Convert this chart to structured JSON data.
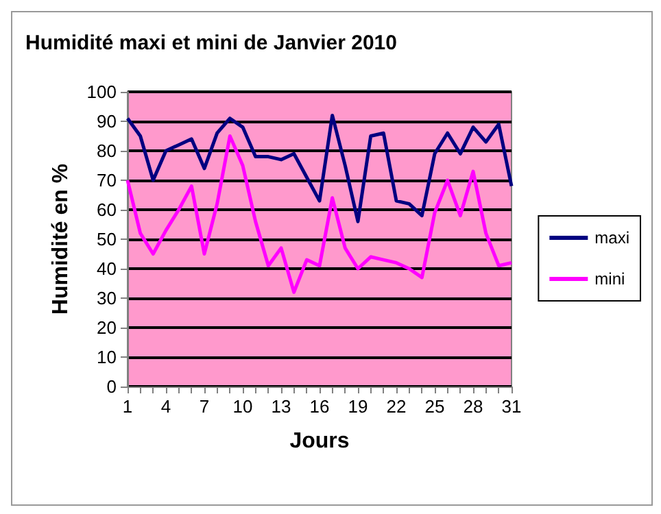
{
  "chart_data": {
    "type": "line",
    "title": "Humidité maxi et mini de Janvier 2010",
    "xlabel": "Jours",
    "ylabel": "Humidité en %",
    "categories": [
      "1",
      null,
      null,
      "4",
      null,
      null,
      "7",
      null,
      null,
      "10",
      null,
      null,
      "13",
      null,
      null,
      "16",
      null,
      null,
      "19",
      null,
      null,
      "22",
      null,
      null,
      "25",
      null,
      null,
      "28",
      null,
      null,
      "31"
    ],
    "series": [
      {
        "name": "maxi",
        "color": "#000080",
        "values": [
          91,
          85,
          70,
          80,
          82,
          84,
          74,
          86,
          91,
          88,
          78,
          78,
          77,
          79,
          71,
          63,
          92,
          75,
          56,
          85,
          86,
          63,
          62,
          58,
          79,
          86,
          79,
          88,
          83,
          89,
          68
        ]
      },
      {
        "name": "mini",
        "color": "#ff00ff",
        "values": [
          70,
          52,
          45,
          53,
          60,
          68,
          45,
          62,
          85,
          75,
          56,
          41,
          47,
          32,
          43,
          41,
          64,
          47,
          40,
          44,
          43,
          42,
          40,
          37,
          59,
          70,
          58,
          73,
          52,
          41,
          42
        ]
      }
    ],
    "ylim": [
      0,
      100
    ],
    "yticks": [
      0,
      10,
      20,
      30,
      40,
      50,
      60,
      70,
      80,
      90,
      100
    ],
    "grid": "y",
    "legend": "right",
    "marker": "none",
    "line_style": "solid"
  }
}
